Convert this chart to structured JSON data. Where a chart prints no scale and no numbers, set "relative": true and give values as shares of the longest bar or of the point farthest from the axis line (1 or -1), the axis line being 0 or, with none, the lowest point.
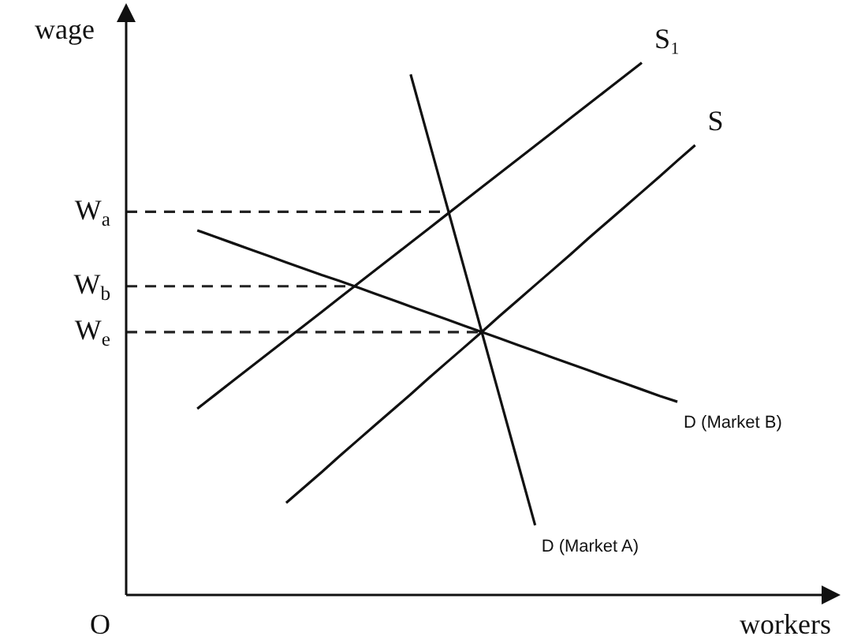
{
  "chart_data": {
    "type": "line",
    "relative": true,
    "xlabel": "workers",
    "ylabel": "wage",
    "legend": false,
    "categories": [
      null,
      null,
      null,
      null,
      null,
      null,
      null,
      null,
      null,
      null,
      null,
      null,
      null,
      null,
      null,
      null,
      null,
      null,
      null,
      null,
      null,
      null,
      null,
      null,
      null,
      null,
      null,
      null,
      null,
      null,
      null,
      null,
      null,
      null,
      null,
      null,
      null,
      null,
      null,
      null,
      null
    ],
    "series": [
      {
        "name": "S₁",
        "color": "#111111",
        "values": [
          null,
          null,
          null,
          null,
          0.35,
          0.376,
          0.402,
          0.428,
          0.454,
          0.48,
          0.506,
          0.532,
          0.558,
          0.584,
          0.61,
          0.636,
          0.662,
          0.688,
          0.714,
          0.74,
          0.766,
          0.792,
          0.818,
          0.844,
          0.87,
          0.896,
          0.922,
          0.948,
          0.974,
          1.0,
          null,
          null,
          null,
          null,
          null,
          null,
          null,
          null,
          null,
          null,
          null
        ]
      },
      {
        "name": "S",
        "color": "#111111",
        "values": [
          null,
          null,
          null,
          null,
          null,
          null,
          null,
          null,
          null,
          0.173,
          0.202,
          0.231,
          0.261,
          0.29,
          0.319,
          0.348,
          0.377,
          0.407,
          0.436,
          0.465,
          0.494,
          0.524,
          0.553,
          0.582,
          0.611,
          0.64,
          0.67,
          0.699,
          0.728,
          0.757,
          0.786,
          0.816,
          0.845,
          null,
          null,
          null,
          null,
          null,
          null,
          null,
          null
        ]
      },
      {
        "name": "D (Market A)",
        "color": "#111111",
        "values": [
          null,
          null,
          null,
          null,
          null,
          null,
          null,
          null,
          null,
          null,
          null,
          null,
          null,
          null,
          null,
          null,
          0.978,
          0.857,
          0.736,
          0.615,
          0.494,
          0.373,
          0.252,
          0.131,
          null,
          null,
          null,
          null,
          null,
          null,
          null,
          null,
          null,
          null,
          null,
          null,
          null,
          null,
          null,
          null,
          null
        ]
      },
      {
        "name": "D (Market B)",
        "color": "#111111",
        "values": [
          null,
          null,
          null,
          null,
          0.685,
          0.673,
          0.661,
          0.649,
          0.637,
          0.625,
          0.613,
          0.601,
          0.59,
          0.578,
          0.566,
          0.554,
          0.542,
          0.53,
          0.518,
          0.506,
          0.494,
          0.482,
          0.47,
          0.458,
          0.446,
          0.434,
          0.422,
          0.41,
          0.398,
          0.386,
          0.374,
          0.363,
          null,
          null,
          null,
          null,
          null,
          null,
          null,
          null,
          null
        ]
      },
      {
        "color": "#222222",
        "line_style": "dashed",
        "values": [
          0.72,
          0.72,
          0.72,
          0.72,
          0.72,
          0.72,
          0.72,
          0.72,
          0.72,
          0.72,
          0.72,
          0.72,
          0.72,
          0.72,
          0.72,
          0.72,
          0.72,
          0.72,
          0.72,
          null,
          null,
          null,
          null,
          null,
          null,
          null,
          null,
          null,
          null,
          null,
          null,
          null,
          null,
          null,
          null,
          null,
          null,
          null,
          null,
          null,
          null
        ]
      },
      {
        "color": "#222222",
        "line_style": "dashed",
        "values": [
          0.58,
          0.58,
          0.58,
          0.58,
          0.58,
          0.58,
          0.58,
          0.58,
          0.58,
          0.58,
          0.58,
          0.58,
          0.58,
          0.58,
          null,
          null,
          null,
          null,
          null,
          null,
          null,
          null,
          null,
          null,
          null,
          null,
          null,
          null,
          null,
          null,
          null,
          null,
          null,
          null,
          null,
          null,
          null,
          null,
          null,
          null,
          null
        ]
      },
      {
        "color": "#222222",
        "line_style": "dashed",
        "values": [
          0.494,
          0.494,
          0.494,
          0.494,
          0.494,
          0.494,
          0.494,
          0.494,
          0.494,
          0.494,
          0.494,
          0.494,
          0.494,
          0.494,
          0.494,
          0.494,
          0.494,
          0.494,
          0.494,
          0.494,
          0.494,
          null,
          null,
          null,
          null,
          null,
          null,
          null,
          null,
          null,
          null,
          null,
          null,
          null,
          null,
          null,
          null,
          null,
          null,
          null,
          null
        ]
      }
    ],
    "annotations": [
      "W$_{a}$",
      "W$_{b}$",
      "W$_{e}$",
      "O"
    ]
  }
}
